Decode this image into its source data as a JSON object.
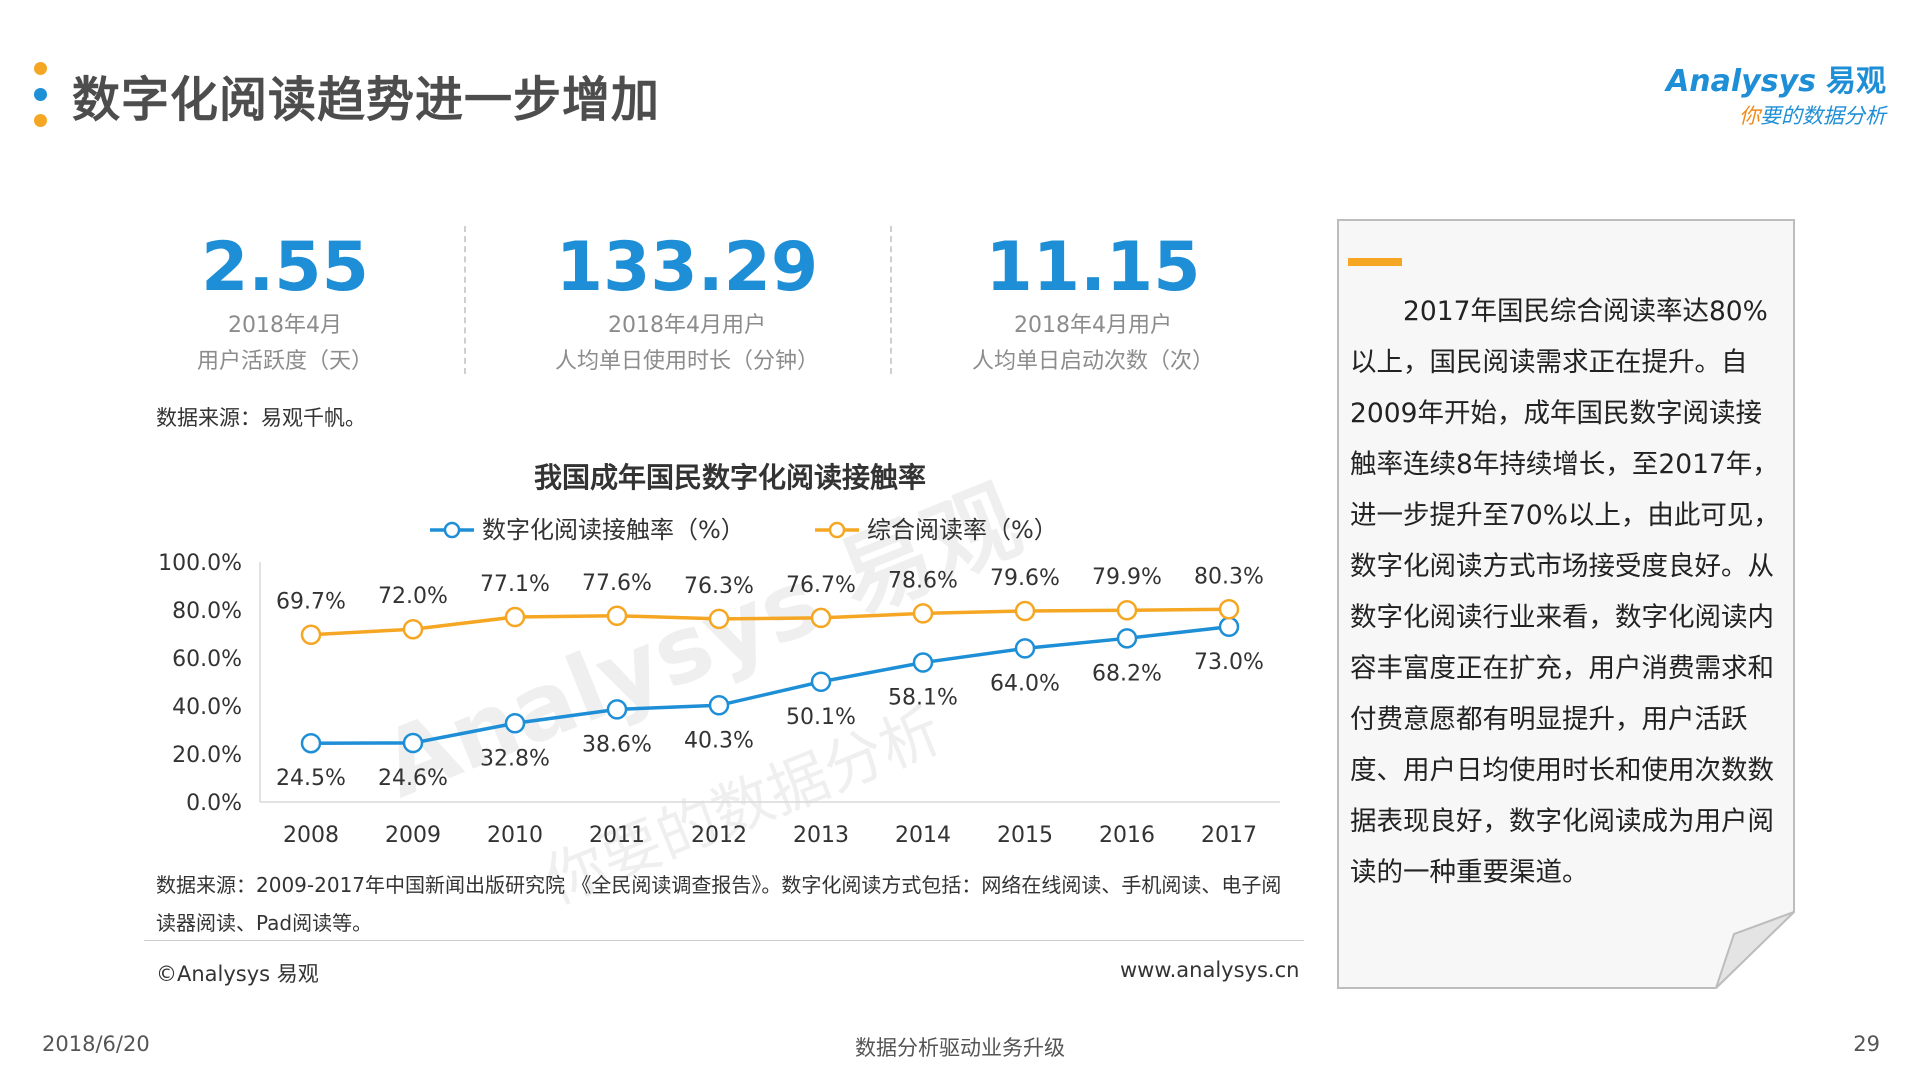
{
  "header": {
    "title": "数字化阅读趋势进一步增加",
    "logo_main": "Analysys",
    "logo_cn": "易观",
    "logo_tag_accent": "你",
    "logo_tag_rest": "要的数据分析"
  },
  "kpis": [
    {
      "value": "2.55",
      "line1": "2018年4月",
      "line2": "用户活跃度（天）"
    },
    {
      "value": "133.29",
      "line1": "2018年4月用户",
      "line2": "人均单日使用时长（分钟）"
    },
    {
      "value": "11.15",
      "line1": "2018年4月用户",
      "line2": "人均单日启动次数（次）"
    }
  ],
  "source1": "数据来源：易观千帆。",
  "chart_data": {
    "type": "line",
    "title": "我国成年国民数字化阅读接触率",
    "categories": [
      "2008",
      "2009",
      "2010",
      "2011",
      "2012",
      "2013",
      "2014",
      "2015",
      "2016",
      "2017"
    ],
    "ylim": [
      0,
      100
    ],
    "yticks": [
      "0.0%",
      "20.0%",
      "40.0%",
      "60.0%",
      "80.0%",
      "100.0%"
    ],
    "series": [
      {
        "name": "数字化阅读接触率（%）",
        "color": "#1e8fd6",
        "values": [
          24.5,
          24.6,
          32.8,
          38.6,
          40.3,
          50.1,
          58.1,
          64.0,
          68.2,
          73.0
        ],
        "labels": [
          "24.5%",
          "24.6%",
          "32.8%",
          "38.6%",
          "40.3%",
          "50.1%",
          "58.1%",
          "64.0%",
          "68.2%",
          "73.0%"
        ]
      },
      {
        "name": "综合阅读率（%）",
        "color": "#f5a623",
        "values": [
          69.7,
          72.0,
          77.1,
          77.6,
          76.3,
          76.7,
          78.6,
          79.6,
          79.9,
          80.3
        ],
        "labels": [
          "69.7%",
          "72.0%",
          "77.1%",
          "77.6%",
          "76.3%",
          "76.7%",
          "78.6%",
          "79.6%",
          "79.9%",
          "80.3%"
        ]
      }
    ],
    "legend": "top"
  },
  "watermark": {
    "main": "Analysys 易观",
    "tag": "你要的数据分析"
  },
  "source2": "数据来源：2009-2017年中国新闻出版研究院 《全民阅读调查报告》。数字化阅读方式包括：网络在线阅读、手机阅读、电子阅读器阅读、Pad阅读等。",
  "copyright": "©Analysys 易观",
  "website": "www.analysys.cn",
  "side_note": "2017年国民综合阅读率达80%以上，国民阅读需求正在提升。自2009年开始，成年国民数字阅读接触率连续8年持续增长，至2017年，进一步提升至70%以上，由此可见，数字化阅读方式市场接受度良好。从数字化阅读行业来看，数字化阅读内容丰富度正在扩充，用户消费需求和付费意愿都有明显提升，用户活跃度、用户日均使用时长和使用次数数据表现良好，数字化阅读成为用户阅读的一种重要渠道。",
  "footer": {
    "date": "2018/6/20",
    "slogan": "数据分析驱动业务升级",
    "page": "29"
  }
}
